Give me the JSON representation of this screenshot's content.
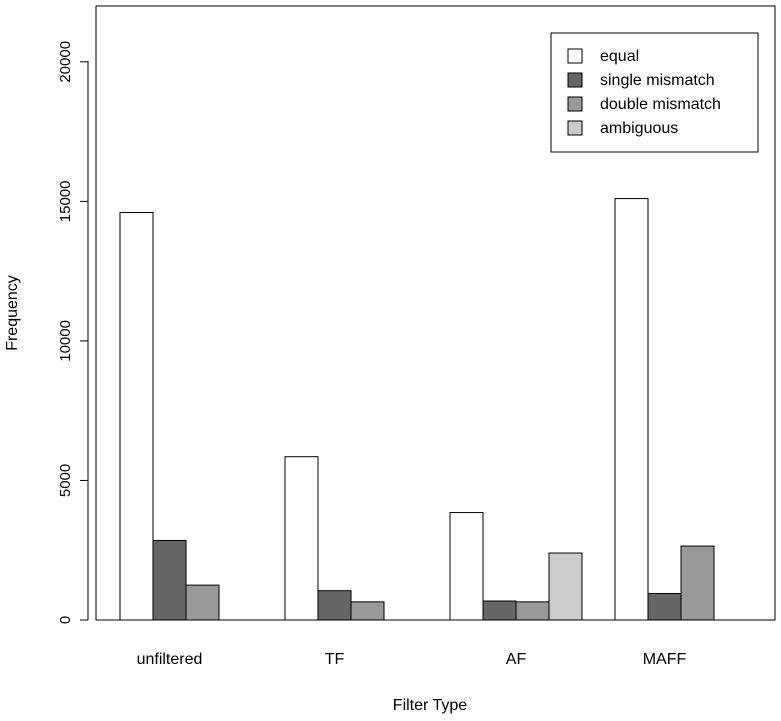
{
  "chart_data": {
    "type": "bar",
    "title": "",
    "xlabel": "Filter Type",
    "ylabel": "Frequency",
    "categories": [
      "unfiltered",
      "TF",
      "AF",
      "MAFF"
    ],
    "ylim": [
      0,
      22000
    ],
    "yticks": [
      0,
      5000,
      10000,
      15000,
      20000
    ],
    "ytick_labels": [
      "0",
      "5000",
      "10000",
      "15000",
      "20000"
    ],
    "grid": false,
    "legend_position": "top-right",
    "series": [
      {
        "name": "equal",
        "color": "#ffffff",
        "values": [
          14600,
          5850,
          3850,
          15100
        ]
      },
      {
        "name": "single mismatch",
        "color": "#666666",
        "values": [
          2850,
          1050,
          680,
          950
        ]
      },
      {
        "name": "double mismatch",
        "color": "#999999",
        "values": [
          1250,
          650,
          650,
          2650
        ]
      },
      {
        "name": "ambiguous",
        "color": "#cccccc",
        "values": [
          null,
          null,
          2400,
          null
        ]
      }
    ]
  }
}
